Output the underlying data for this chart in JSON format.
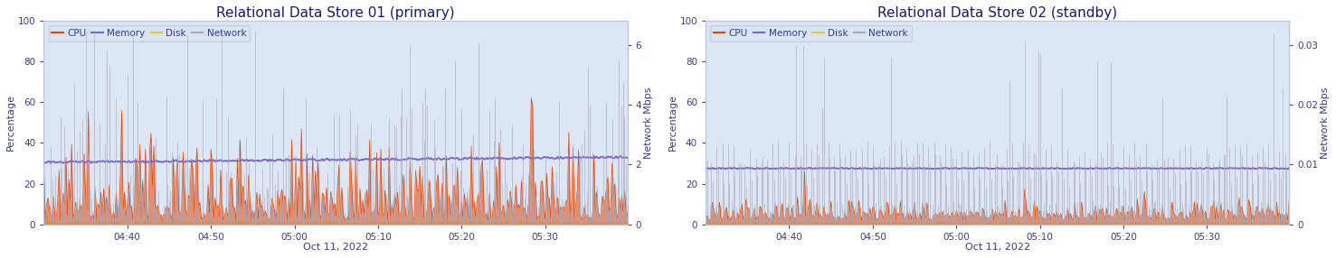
{
  "chart1": {
    "title": "Relational Data Store 01 (primary)",
    "cpu_color": "#e84400",
    "memory_color": "#7b68c8",
    "disk_color": "#e8c840",
    "network_color": "#a8a8b8",
    "background_color": "#dce6f5",
    "ylim": [
      0,
      100
    ],
    "network_ylim": [
      0,
      6.8
    ],
    "memory_level": 31.5,
    "ylabel": "Percentage",
    "ylabel2": "Network Mbps",
    "xlabel": "Oct 11, 2022",
    "xtick_labels": [
      "04:40",
      "04:50",
      "05:00",
      "05:10",
      "05:20",
      "05:30"
    ],
    "network_yticks": [
      0,
      2,
      4,
      6
    ],
    "network_ytick_labels": [
      "0",
      "2",
      "4",
      "6"
    ]
  },
  "chart2": {
    "title": "Relational Data Store 02 (standby)",
    "cpu_color": "#e84400",
    "memory_color": "#7b68c8",
    "disk_color": "#e8c840",
    "network_color": "#a8a8b8",
    "background_color": "#dce6f5",
    "ylim": [
      0,
      100
    ],
    "network_ylim": [
      0,
      0.034
    ],
    "memory_level": 27.5,
    "ylabel": "Percentage",
    "ylabel2": "Network Mbps",
    "xlabel": "Oct 11, 2022",
    "xtick_labels": [
      "04:40",
      "04:50",
      "05:00",
      "05:10",
      "05:20",
      "05:30"
    ],
    "network_yticks": [
      0,
      0.01,
      0.02,
      0.03
    ],
    "network_ytick_labels": [
      "0",
      "0.01",
      "0.02",
      "0.03"
    ]
  },
  "legend_labels": [
    "CPU",
    "Memory",
    "Disk",
    "Network"
  ],
  "title_fontsize": 11,
  "label_fontsize": 8,
  "tick_fontsize": 7.5
}
